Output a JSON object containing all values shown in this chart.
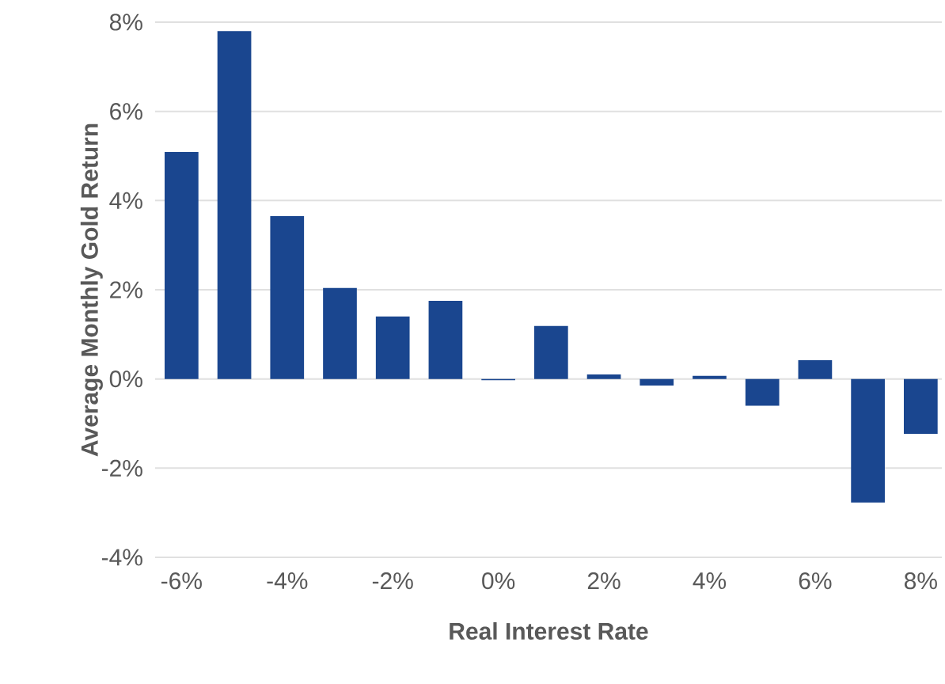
{
  "chart_data": {
    "type": "bar",
    "xlabel": "Real Interest Rate",
    "ylabel": "Average Monthly Gold Return",
    "x": [
      -6,
      -5,
      -4,
      -3,
      -2,
      -1,
      0,
      1,
      2,
      3,
      4,
      5,
      6,
      7,
      8
    ],
    "values": [
      5.09,
      7.8,
      3.65,
      2.04,
      1.4,
      1.75,
      -0.03,
      1.19,
      0.1,
      -0.15,
      0.07,
      -0.6,
      0.42,
      -2.77,
      -1.23
    ],
    "color": "#1a468f",
    "xlim": [
      -6.5,
      8.4
    ],
    "ylim": [
      -4,
      8
    ],
    "xticks": [
      {
        "value": -6,
        "label": "-6%"
      },
      {
        "value": -4,
        "label": "-4%"
      },
      {
        "value": -2,
        "label": "-2%"
      },
      {
        "value": 0,
        "label": "0%"
      },
      {
        "value": 2,
        "label": "2%"
      },
      {
        "value": 4,
        "label": "4%"
      },
      {
        "value": 6,
        "label": "6%"
      },
      {
        "value": 8,
        "label": "8%"
      }
    ],
    "yticks": [
      {
        "value": -4,
        "label": "-4%"
      },
      {
        "value": -2,
        "label": "-2%"
      },
      {
        "value": 0,
        "label": "0%"
      },
      {
        "value": 2,
        "label": "2%"
      },
      {
        "value": 4,
        "label": "4%"
      },
      {
        "value": 6,
        "label": "6%"
      },
      {
        "value": 8,
        "label": "8%"
      }
    ],
    "grid": "y"
  }
}
